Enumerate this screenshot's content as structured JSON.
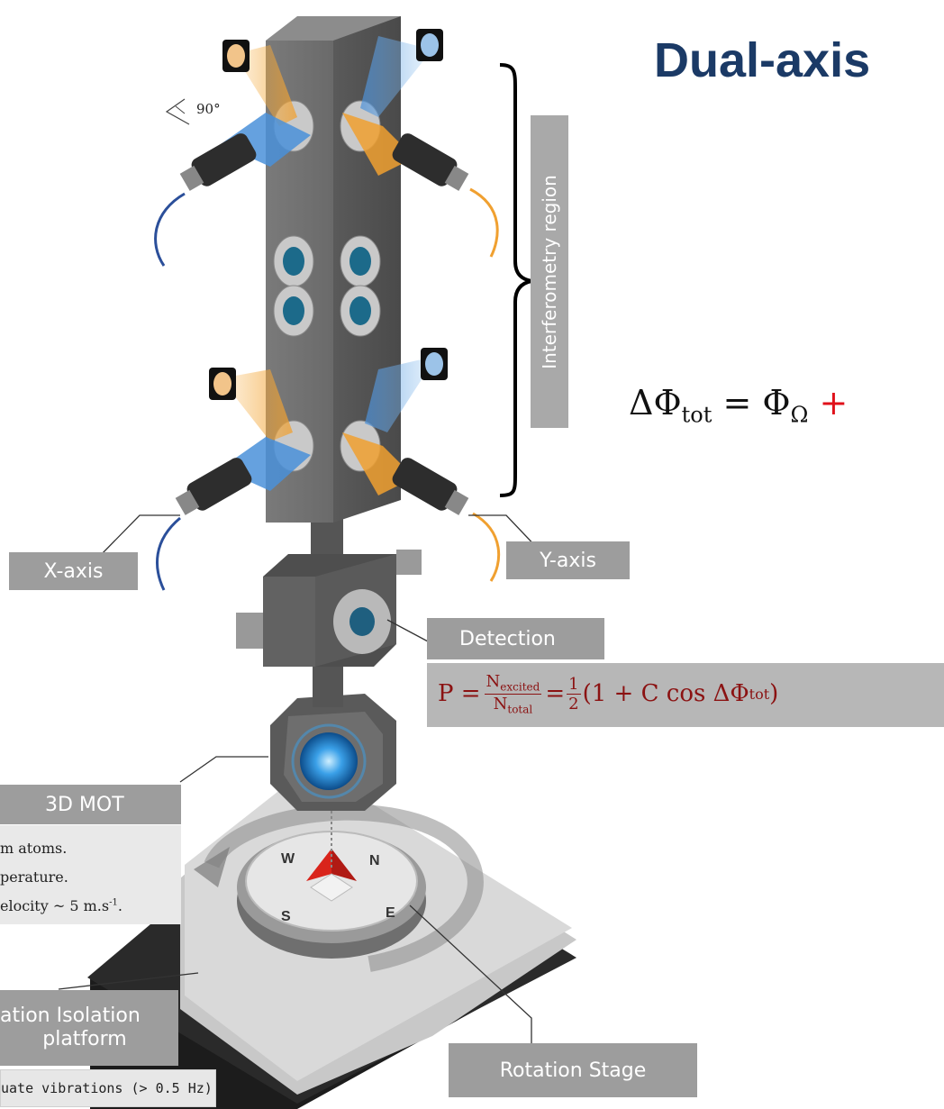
{
  "title": "Dual-axis",
  "angle_label": "90°",
  "labels": {
    "interferometry_region": "Interferometry region",
    "x_axis": "X-axis",
    "y_axis": "Y-axis",
    "detection": "Detection",
    "mot": "3D MOT",
    "vibration_line1": "ation Isolation",
    "vibration_line2": "platform",
    "rotation_stage": "Rotation Stage"
  },
  "phase_formula": {
    "lhs": "ΔΦ",
    "lhs_sub": "tot",
    "eq": " = Φ",
    "rhs_sub": "Ω",
    "plus": " +"
  },
  "detection_formula": {
    "p": "P = ",
    "num": "N",
    "num_sub": "excited",
    "den": "N",
    "den_sub": "total",
    "eq2": " = ",
    "half_num": "1",
    "half_den": "2",
    "rest": "(1 + C cos ΔΦ",
    "rest_sub": "tot",
    "close": ")"
  },
  "mot_notes": {
    "line1": "m atoms.",
    "line2": "perature.",
    "line3_a": "elocity ~ 5 m.s",
    "line3_sup": "-1",
    "line3_b": "."
  },
  "vibration_note": "uate vibrations (> 0.5 Hz)",
  "compass": {
    "n": "N",
    "e": "E",
    "s": "S",
    "w": "W"
  },
  "colors": {
    "title": "#1b3a66",
    "label_box": "#9d9d9d",
    "orange_beam": "#f0a030",
    "blue_beam": "#4a90d9",
    "tower": "#6b6b6b",
    "red_plus": "#e0101a",
    "compass_needle": "#d9241b"
  }
}
